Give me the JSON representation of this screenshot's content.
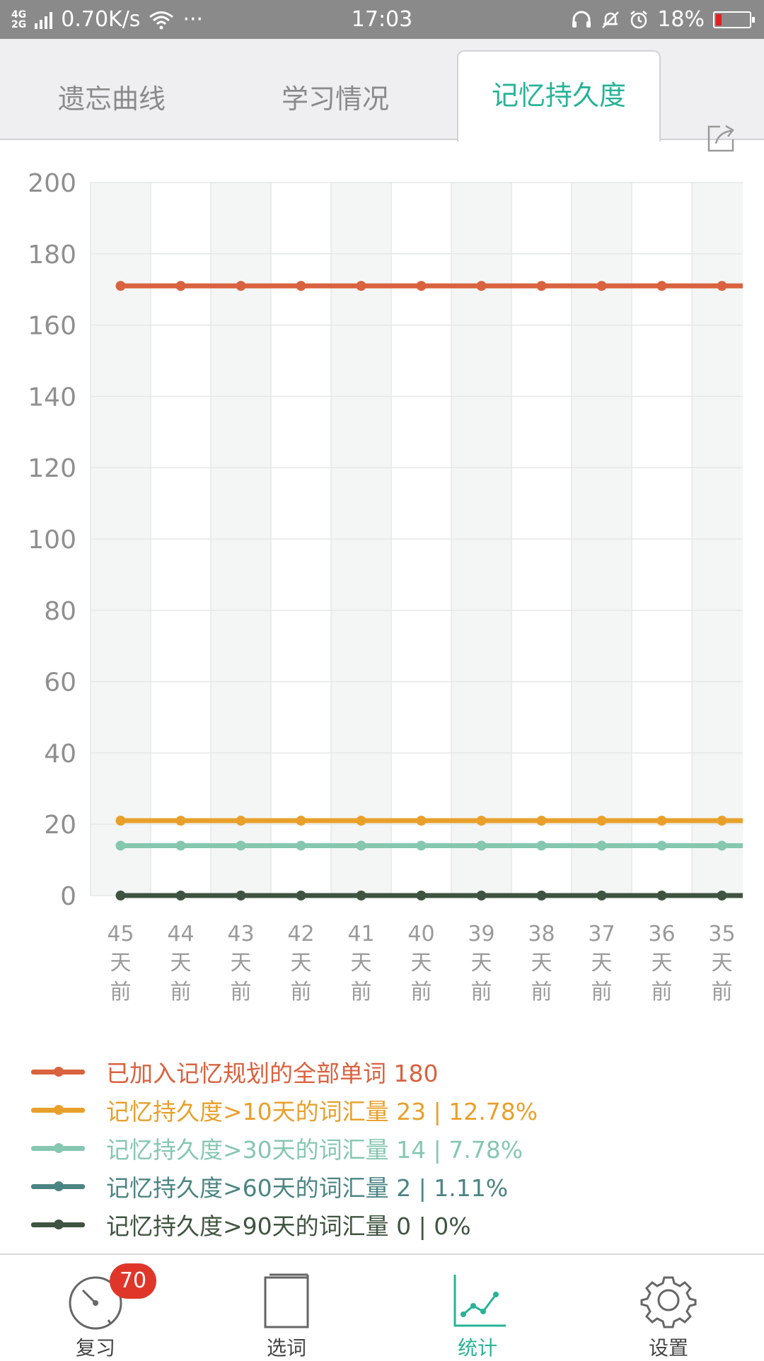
{
  "status_bar": {
    "net_type_top": "4G",
    "net_type_bottom": "2G",
    "speed": "0.70K/s",
    "more": "···",
    "time": "17:03",
    "battery": "18%",
    "battery_level": 0.18
  },
  "tabs": [
    {
      "label": "遗忘曲线",
      "active": false
    },
    {
      "label": "学习情况",
      "active": false
    },
    {
      "label": "记忆持久度",
      "active": true
    }
  ],
  "chart_data": {
    "type": "line",
    "categories": [
      "45天前",
      "44天前",
      "43天前",
      "42天前",
      "41天前",
      "40天前",
      "39天前",
      "38天前",
      "37天前",
      "36天前",
      "35天前"
    ],
    "ylim": [
      0,
      200
    ],
    "yticks": [
      0,
      20,
      40,
      60,
      80,
      100,
      120,
      140,
      160,
      180,
      200
    ],
    "grid": true,
    "series": [
      {
        "name": "已加入记忆规划的全部单词",
        "color": "#d9623f",
        "values": [
          171,
          171,
          171,
          171,
          171,
          171,
          171,
          171,
          171,
          171,
          171
        ]
      },
      {
        "name": "记忆持久度>10天的词汇量",
        "color": "#e8a02b",
        "values": [
          21,
          21,
          21,
          21,
          21,
          21,
          21,
          21,
          21,
          21,
          21
        ]
      },
      {
        "name": "记忆持久度>30天的词汇量",
        "color": "#86c7b0",
        "values": [
          14,
          14,
          14,
          14,
          14,
          14,
          14,
          14,
          14,
          14,
          14
        ]
      },
      {
        "name": "记忆持久度>90天的词汇量",
        "color": "#3f5440",
        "values": [
          0,
          0,
          0,
          0,
          0,
          0,
          0,
          0,
          0,
          0,
          0
        ]
      }
    ]
  },
  "legend": [
    {
      "text": "已加入记忆规划的全部单词 180",
      "color": "#d9623f"
    },
    {
      "text": "记忆持久度>10天的词汇量 23 | 12.78%",
      "color": "#e8a02b"
    },
    {
      "text": "记忆持久度>30天的词汇量 14 | 7.78%",
      "color": "#86c7b0"
    },
    {
      "text": "记忆持久度>60天的词汇量 2 | 1.11%",
      "color": "#4b8583"
    },
    {
      "text": "记忆持久度>90天的词汇量 0 | 0%",
      "color": "#3f5440"
    }
  ],
  "bottom_nav": [
    {
      "label": "复习",
      "icon": "gauge-icon",
      "badge": "70",
      "active": false
    },
    {
      "label": "选词",
      "icon": "book-icon",
      "active": false
    },
    {
      "label": "统计",
      "icon": "chart-icon",
      "active": true
    },
    {
      "label": "设置",
      "icon": "gear-icon",
      "active": false
    }
  ],
  "colors": {
    "accent": "#27b397",
    "badge": "#e0362a"
  }
}
